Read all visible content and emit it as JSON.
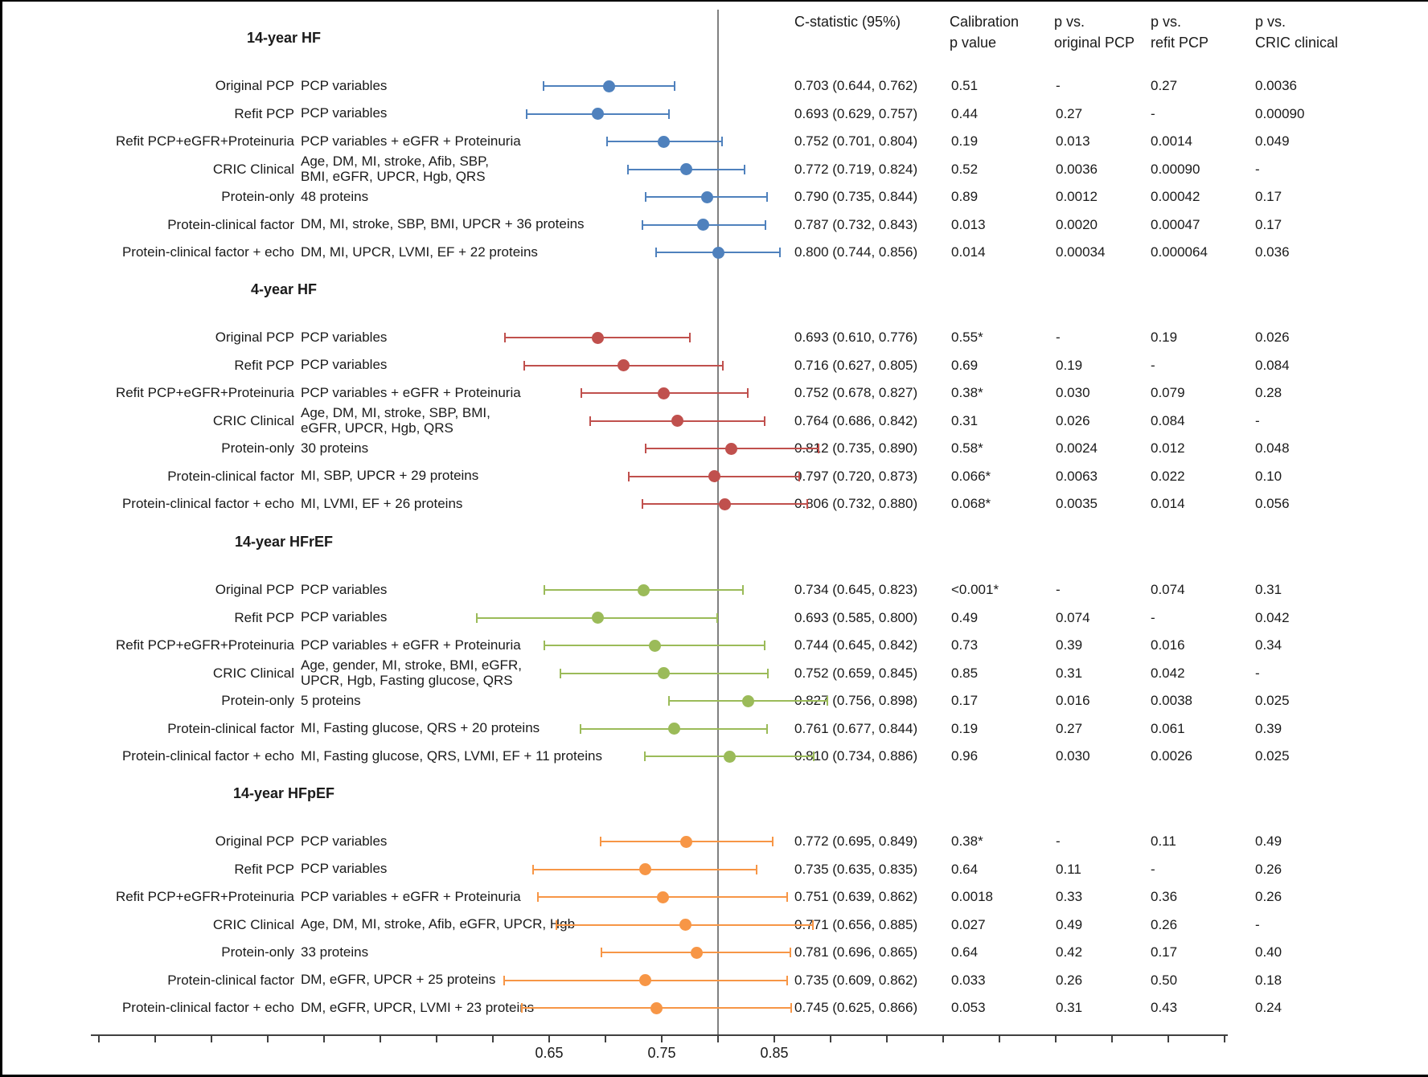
{
  "headers": {
    "cstat": "C-statistic (95%)",
    "calibration": "Calibration\np value",
    "p_vs_original": "p vs.\noriginal PCP",
    "p_vs_refit": "p vs.\nrefit PCP",
    "p_vs_cric": "p vs.\nCRIC clinical"
  },
  "chart_data": {
    "type": "scatter",
    "variant": "forest-plot",
    "xaxis": {
      "range": [
        0.25,
        1.25
      ],
      "tick_step": 0.05,
      "labeled_ticks": [
        "0.65",
        "0.75",
        "0.85"
      ],
      "reference_line": 0.8
    },
    "groups": [
      {
        "title": "14-year HF",
        "color": "#4F81BD",
        "rows": [
          {
            "model": "Original PCP",
            "variables": "PCP variables",
            "est": 0.703,
            "lo": 0.644,
            "hi": 0.762,
            "cstat": "0.703 (0.644, 0.762)",
            "calibration_p": "0.51",
            "p_vs_original": "-",
            "p_vs_refit": "0.27",
            "p_vs_cric": "0.0036"
          },
          {
            "model": "Refit PCP",
            "variables": "PCP variables",
            "est": 0.693,
            "lo": 0.629,
            "hi": 0.757,
            "cstat": "0.693 (0.629, 0.757)",
            "calibration_p": "0.44",
            "p_vs_original": "0.27",
            "p_vs_refit": "-",
            "p_vs_cric": "0.00090"
          },
          {
            "model": "Refit PCP+eGFR+Proteinuria",
            "variables": "PCP variables + eGFR + Proteinuria",
            "est": 0.752,
            "lo": 0.701,
            "hi": 0.804,
            "cstat": "0.752 (0.701, 0.804)",
            "calibration_p": "0.19",
            "p_vs_original": "0.013",
            "p_vs_refit": "0.0014",
            "p_vs_cric": "0.049"
          },
          {
            "model": "CRIC Clinical",
            "variables": "Age, DM, MI, stroke, Afib, SBP,\nBMI, eGFR, UPCR, Hgb, QRS",
            "est": 0.772,
            "lo": 0.719,
            "hi": 0.824,
            "cstat": "0.772 (0.719, 0.824)",
            "calibration_p": "0.52",
            "p_vs_original": "0.0036",
            "p_vs_refit": "0.00090",
            "p_vs_cric": "-"
          },
          {
            "model": "Protein-only",
            "variables": "48 proteins",
            "est": 0.79,
            "lo": 0.735,
            "hi": 0.844,
            "cstat": "0.790 (0.735, 0.844)",
            "calibration_p": "0.89",
            "p_vs_original": "0.0012",
            "p_vs_refit": "0.00042",
            "p_vs_cric": "0.17"
          },
          {
            "model": "Protein-clinical factor",
            "variables": "DM, MI, stroke, SBP, BMI, UPCR + 36 proteins",
            "est": 0.787,
            "lo": 0.732,
            "hi": 0.843,
            "cstat": "0.787 (0.732, 0.843)",
            "calibration_p": "0.013",
            "p_vs_original": "0.0020",
            "p_vs_refit": "0.00047",
            "p_vs_cric": "0.17"
          },
          {
            "model": "Protein-clinical factor + echo",
            "variables": "DM, MI, UPCR, LVMI, EF + 22 proteins",
            "est": 0.8,
            "lo": 0.744,
            "hi": 0.856,
            "cstat": "0.800 (0.744, 0.856)",
            "calibration_p": "0.014",
            "p_vs_original": "0.00034",
            "p_vs_refit": "0.000064",
            "p_vs_cric": "0.036"
          }
        ]
      },
      {
        "title": "4-year HF",
        "color": "#C0504D",
        "rows": [
          {
            "model": "Original PCP",
            "variables": "PCP variables",
            "est": 0.693,
            "lo": 0.61,
            "hi": 0.776,
            "cstat": "0.693 (0.610, 0.776)",
            "calibration_p": "0.55*",
            "p_vs_original": "-",
            "p_vs_refit": "0.19",
            "p_vs_cric": "0.026"
          },
          {
            "model": "Refit PCP",
            "variables": "PCP variables",
            "est": 0.716,
            "lo": 0.627,
            "hi": 0.805,
            "cstat": "0.716 (0.627, 0.805)",
            "calibration_p": "0.69",
            "p_vs_original": "0.19",
            "p_vs_refit": "-",
            "p_vs_cric": "0.084"
          },
          {
            "model": "Refit PCP+eGFR+Proteinuria",
            "variables": "PCP variables + eGFR + Proteinuria",
            "est": 0.752,
            "lo": 0.678,
            "hi": 0.827,
            "cstat": "0.752 (0.678, 0.827)",
            "calibration_p": "0.38*",
            "p_vs_original": "0.030",
            "p_vs_refit": "0.079",
            "p_vs_cric": "0.28"
          },
          {
            "model": "CRIC Clinical",
            "variables": "Age, DM, MI, stroke, SBP, BMI,\neGFR, UPCR, Hgb, QRS",
            "est": 0.764,
            "lo": 0.686,
            "hi": 0.842,
            "cstat": "0.764 (0.686, 0.842)",
            "calibration_p": "0.31",
            "p_vs_original": "0.026",
            "p_vs_refit": "0.084",
            "p_vs_cric": "-"
          },
          {
            "model": "Protein-only",
            "variables": "30 proteins",
            "est": 0.812,
            "lo": 0.735,
            "hi": 0.89,
            "cstat": "0.812 (0.735, 0.890)",
            "calibration_p": "0.58*",
            "p_vs_original": "0.0024",
            "p_vs_refit": "0.012",
            "p_vs_cric": "0.048"
          },
          {
            "model": "Protein-clinical factor",
            "variables": "MI, SBP, UPCR + 29 proteins",
            "est": 0.797,
            "lo": 0.72,
            "hi": 0.873,
            "cstat": "0.797 (0.720, 0.873)",
            "calibration_p": "0.066*",
            "p_vs_original": "0.0063",
            "p_vs_refit": "0.022",
            "p_vs_cric": "0.10"
          },
          {
            "model": "Protein-clinical factor + echo",
            "variables": "MI, LVMI, EF + 26 proteins",
            "est": 0.806,
            "lo": 0.732,
            "hi": 0.88,
            "cstat": "0.806 (0.732, 0.880)",
            "calibration_p": "0.068*",
            "p_vs_original": "0.0035",
            "p_vs_refit": "0.014",
            "p_vs_cric": "0.056"
          }
        ]
      },
      {
        "title": "14-year HFrEF",
        "color": "#9BBB59",
        "rows": [
          {
            "model": "Original PCP",
            "variables": "PCP variables",
            "est": 0.734,
            "lo": 0.645,
            "hi": 0.823,
            "cstat": "0.734 (0.645, 0.823)",
            "calibration_p": "<0.001*",
            "p_vs_original": "-",
            "p_vs_refit": "0.074",
            "p_vs_cric": "0.31"
          },
          {
            "model": "Refit PCP",
            "variables": "PCP variables",
            "est": 0.693,
            "lo": 0.585,
            "hi": 0.8,
            "cstat": "0.693 (0.585, 0.800)",
            "calibration_p": "0.49",
            "p_vs_original": "0.074",
            "p_vs_refit": "-",
            "p_vs_cric": "0.042"
          },
          {
            "model": "Refit PCP+eGFR+Proteinuria",
            "variables": "PCP variables + eGFR + Proteinuria",
            "est": 0.744,
            "lo": 0.645,
            "hi": 0.842,
            "cstat": "0.744 (0.645, 0.842)",
            "calibration_p": "0.73",
            "p_vs_original": "0.39",
            "p_vs_refit": "0.016",
            "p_vs_cric": "0.34"
          },
          {
            "model": "CRIC Clinical",
            "variables": "Age, gender, MI, stroke, BMI, eGFR,\nUPCR, Hgb, Fasting glucose, QRS",
            "est": 0.752,
            "lo": 0.659,
            "hi": 0.845,
            "cstat": "0.752 (0.659, 0.845)",
            "calibration_p": "0.85",
            "p_vs_original": "0.31",
            "p_vs_refit": "0.042",
            "p_vs_cric": "-"
          },
          {
            "model": "Protein-only",
            "variables": "5 proteins",
            "est": 0.827,
            "lo": 0.756,
            "hi": 0.898,
            "cstat": "0.827 (0.756, 0.898)",
            "calibration_p": "0.17",
            "p_vs_original": "0.016",
            "p_vs_refit": "0.0038",
            "p_vs_cric": "0.025"
          },
          {
            "model": "Protein-clinical factor",
            "variables": "MI, Fasting glucose, QRS + 20 proteins",
            "est": 0.761,
            "lo": 0.677,
            "hi": 0.844,
            "cstat": "0.761 (0.677, 0.844)",
            "calibration_p": "0.19",
            "p_vs_original": "0.27",
            "p_vs_refit": "0.061",
            "p_vs_cric": "0.39"
          },
          {
            "model": "Protein-clinical factor + echo",
            "variables": "MI, Fasting glucose, QRS, LVMI, EF + 11 proteins",
            "est": 0.81,
            "lo": 0.734,
            "hi": 0.886,
            "cstat": "0.810 (0.734, 0.886)",
            "calibration_p": "0.96",
            "p_vs_original": "0.030",
            "p_vs_refit": "0.0026",
            "p_vs_cric": "0.025"
          }
        ]
      },
      {
        "title": "14-year HFpEF",
        "color": "#F79646",
        "rows": [
          {
            "model": "Original PCP",
            "variables": "PCP variables",
            "est": 0.772,
            "lo": 0.695,
            "hi": 0.849,
            "cstat": "0.772 (0.695, 0.849)",
            "calibration_p": "0.38*",
            "p_vs_original": "-",
            "p_vs_refit": "0.11",
            "p_vs_cric": "0.49"
          },
          {
            "model": "Refit PCP",
            "variables": "PCP variables",
            "est": 0.735,
            "lo": 0.635,
            "hi": 0.835,
            "cstat": "0.735 (0.635, 0.835)",
            "calibration_p": "0.64",
            "p_vs_original": "0.11",
            "p_vs_refit": "-",
            "p_vs_cric": "0.26"
          },
          {
            "model": "Refit PCP+eGFR+Proteinuria",
            "variables": "PCP variables + eGFR + Proteinuria",
            "est": 0.751,
            "lo": 0.639,
            "hi": 0.862,
            "cstat": "0.751 (0.639, 0.862)",
            "calibration_p": "0.0018",
            "p_vs_original": "0.33",
            "p_vs_refit": "0.36",
            "p_vs_cric": "0.26"
          },
          {
            "model": "CRIC Clinical",
            "variables": "Age, DM, MI, stroke, Afib, eGFR, UPCR, Hgb",
            "est": 0.771,
            "lo": 0.656,
            "hi": 0.885,
            "cstat": "0.771 (0.656, 0.885)",
            "calibration_p": "0.027",
            "p_vs_original": "0.49",
            "p_vs_refit": "0.26",
            "p_vs_cric": "-"
          },
          {
            "model": "Protein-only",
            "variables": "33 proteins",
            "est": 0.781,
            "lo": 0.696,
            "hi": 0.865,
            "cstat": "0.781 (0.696, 0.865)",
            "calibration_p": "0.64",
            "p_vs_original": "0.42",
            "p_vs_refit": "0.17",
            "p_vs_cric": "0.40"
          },
          {
            "model": "Protein-clinical factor",
            "variables": "DM, eGFR, UPCR + 25 proteins",
            "est": 0.735,
            "lo": 0.609,
            "hi": 0.862,
            "cstat": "0.735 (0.609, 0.862)",
            "calibration_p": "0.033",
            "p_vs_original": "0.26",
            "p_vs_refit": "0.50",
            "p_vs_cric": "0.18"
          },
          {
            "model": "Protein-clinical factor + echo",
            "variables": "DM, eGFR, UPCR, LVMI + 23 proteins",
            "est": 0.745,
            "lo": 0.625,
            "hi": 0.866,
            "cstat": "0.745 (0.625, 0.866)",
            "calibration_p": "0.053",
            "p_vs_original": "0.31",
            "p_vs_refit": "0.43",
            "p_vs_cric": "0.24"
          }
        ]
      }
    ]
  }
}
